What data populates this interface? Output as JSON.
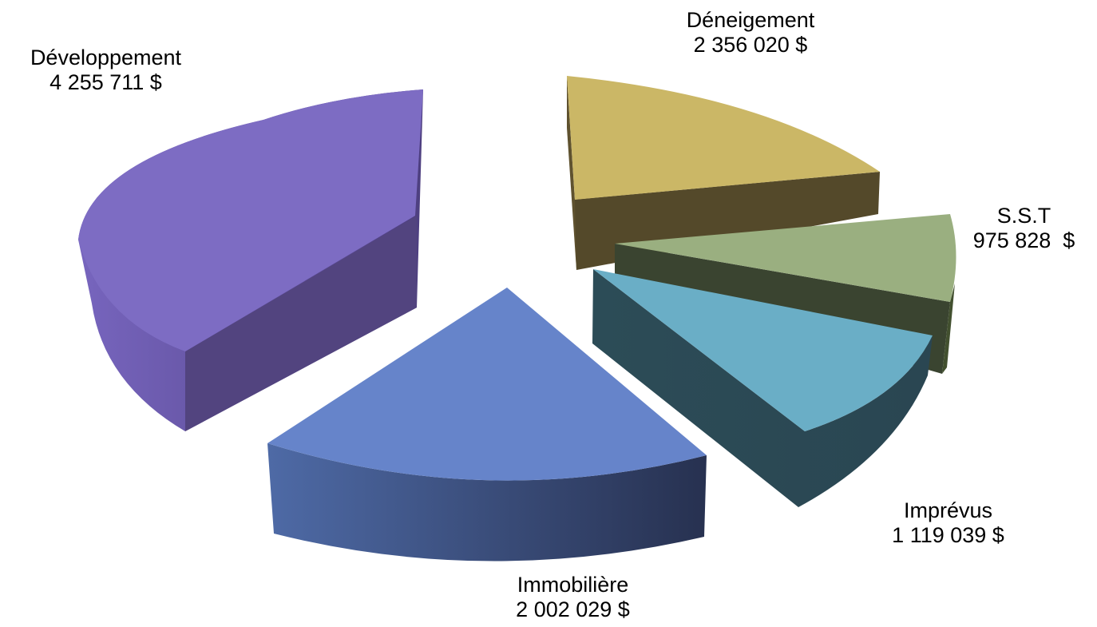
{
  "chart_data": {
    "type": "pie",
    "variant": "3d-exploded",
    "title": "",
    "legend": "none",
    "slices": [
      {
        "name": "Déneigement",
        "value": 2356020,
        "value_label": "2 356 020 $",
        "color": "#CBB766"
      },
      {
        "name": "S.S.T",
        "value": 975828,
        "value_label": "975 828  $",
        "color": "#9AAF80"
      },
      {
        "name": "Imprévus",
        "value": 1119039,
        "value_label": "1 119 039 $",
        "color": "#6AAEC6"
      },
      {
        "name": "Immobilière",
        "value": 2002029,
        "value_label": "2 002 029 $",
        "color": "#6684CA"
      },
      {
        "name": "Développement",
        "value": 4255711,
        "value_label": "4 255 711 $",
        "color": "#7D6CC3"
      }
    ]
  }
}
